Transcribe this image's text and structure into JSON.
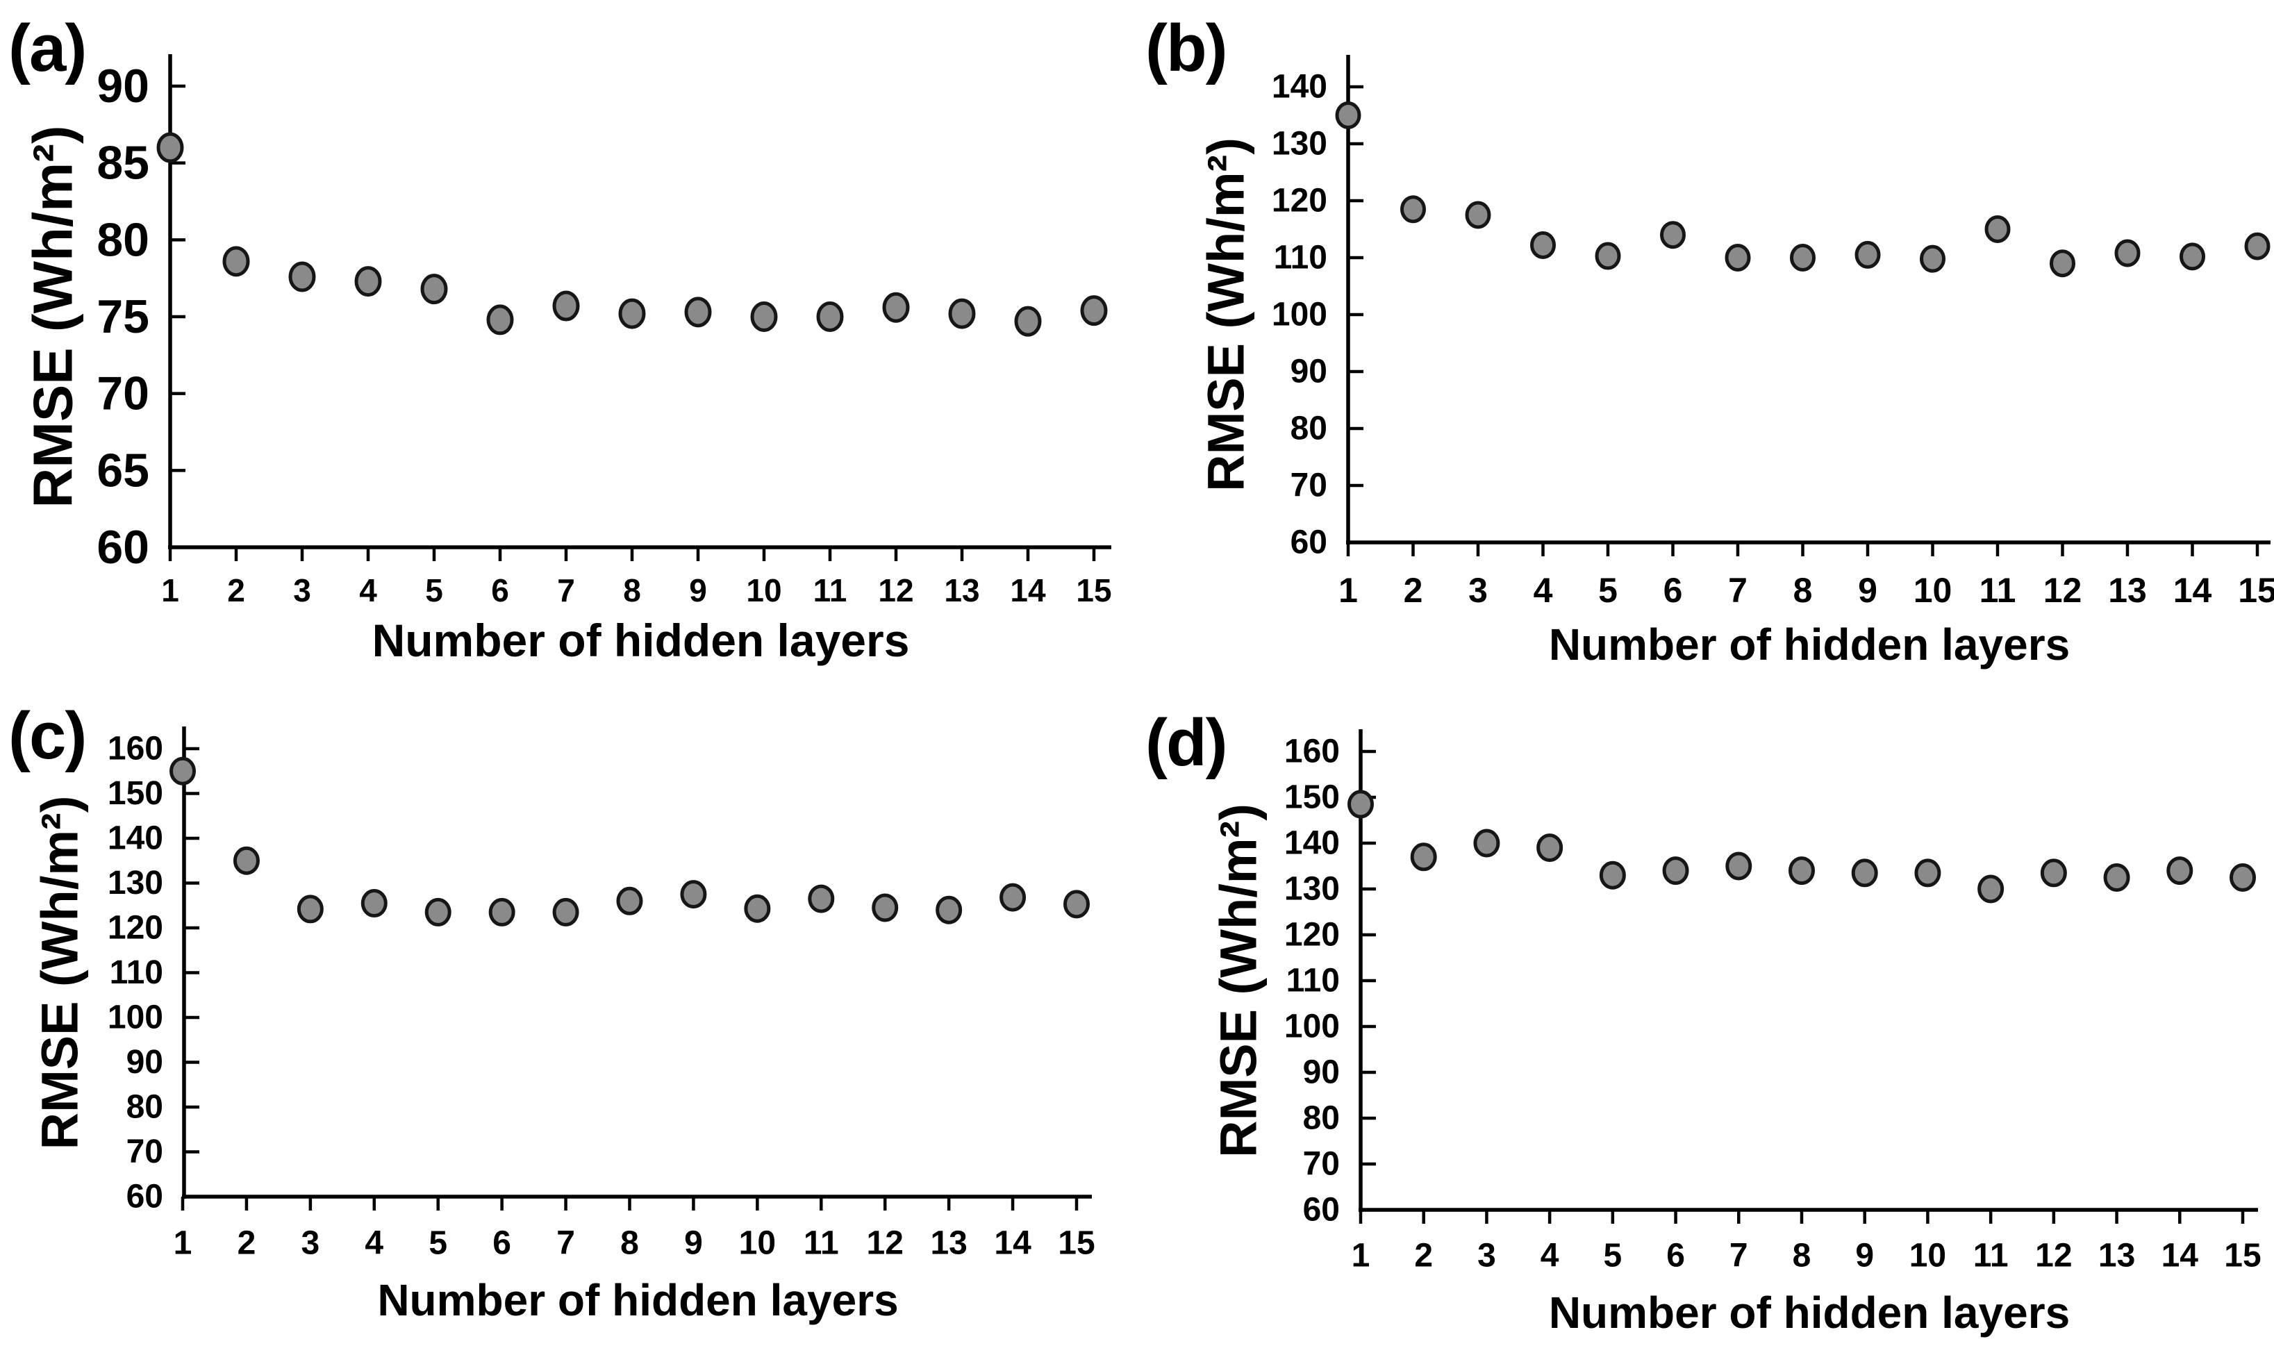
{
  "figure": {
    "background": "#ffffff",
    "marker_fill": "#8a8a8a",
    "marker_stroke": "#161616",
    "axis_color": "#000000",
    "text_color": "#000000"
  },
  "chart_data": [
    {
      "type": "scatter",
      "panel_label": "(a)",
      "xlabel": "Number of hidden layers",
      "ylabel": "RMSE (Wh/m²)",
      "x": [
        1,
        2,
        3,
        4,
        5,
        6,
        7,
        8,
        9,
        10,
        11,
        12,
        13,
        14,
        15
      ],
      "values": [
        86,
        78.6,
        77.6,
        77.3,
        76.8,
        74.8,
        75.7,
        75.2,
        75.3,
        75,
        75,
        75.6,
        75.2,
        74.7,
        75.4
      ],
      "ylim": [
        60,
        90
      ],
      "yticks": [
        60,
        65,
        70,
        75,
        80,
        85,
        90
      ],
      "grid": false,
      "legend": null
    },
    {
      "type": "scatter",
      "panel_label": "(b)",
      "xlabel": "Number of hidden layers",
      "ylabel": "RMSE (Wh/m²)",
      "x": [
        1,
        2,
        3,
        4,
        5,
        6,
        7,
        8,
        9,
        10,
        11,
        12,
        13,
        14,
        15
      ],
      "values": [
        135,
        118.5,
        117.5,
        112.2,
        110.3,
        114,
        110,
        110,
        110.5,
        109.8,
        115,
        109,
        110.8,
        110.2,
        112
      ],
      "ylim": [
        60,
        140
      ],
      "yticks": [
        60,
        70,
        80,
        90,
        100,
        110,
        120,
        130,
        140
      ],
      "grid": false,
      "legend": null
    },
    {
      "type": "scatter",
      "panel_label": "(c)",
      "xlabel": "Number of hidden layers",
      "ylabel": "RMSE (Wh/m²)",
      "x": [
        1,
        2,
        3,
        4,
        5,
        6,
        7,
        8,
        9,
        10,
        11,
        12,
        13,
        14,
        15
      ],
      "values": [
        155,
        135,
        124.2,
        125.5,
        123.5,
        123.5,
        123.5,
        126,
        127.5,
        124.3,
        126.5,
        124.5,
        124,
        126.8,
        125.3
      ],
      "ylim": [
        60,
        160
      ],
      "yticks": [
        60,
        70,
        80,
        90,
        100,
        110,
        120,
        130,
        140,
        150,
        160
      ],
      "grid": false,
      "legend": null
    },
    {
      "type": "scatter",
      "panel_label": "(d)",
      "xlabel": "Number of hidden layers",
      "ylabel": "RMSE (Wh/m²)",
      "x": [
        1,
        2,
        3,
        4,
        5,
        6,
        7,
        8,
        9,
        10,
        11,
        12,
        13,
        14,
        15
      ],
      "values": [
        148.5,
        137,
        140,
        139,
        133,
        134,
        135,
        134,
        133.5,
        133.5,
        130,
        133.5,
        132.5,
        134,
        132.5
      ],
      "ylim": [
        60,
        160
      ],
      "yticks": [
        60,
        70,
        80,
        90,
        100,
        110,
        120,
        130,
        140,
        150,
        160
      ],
      "grid": false,
      "legend": null
    }
  ]
}
